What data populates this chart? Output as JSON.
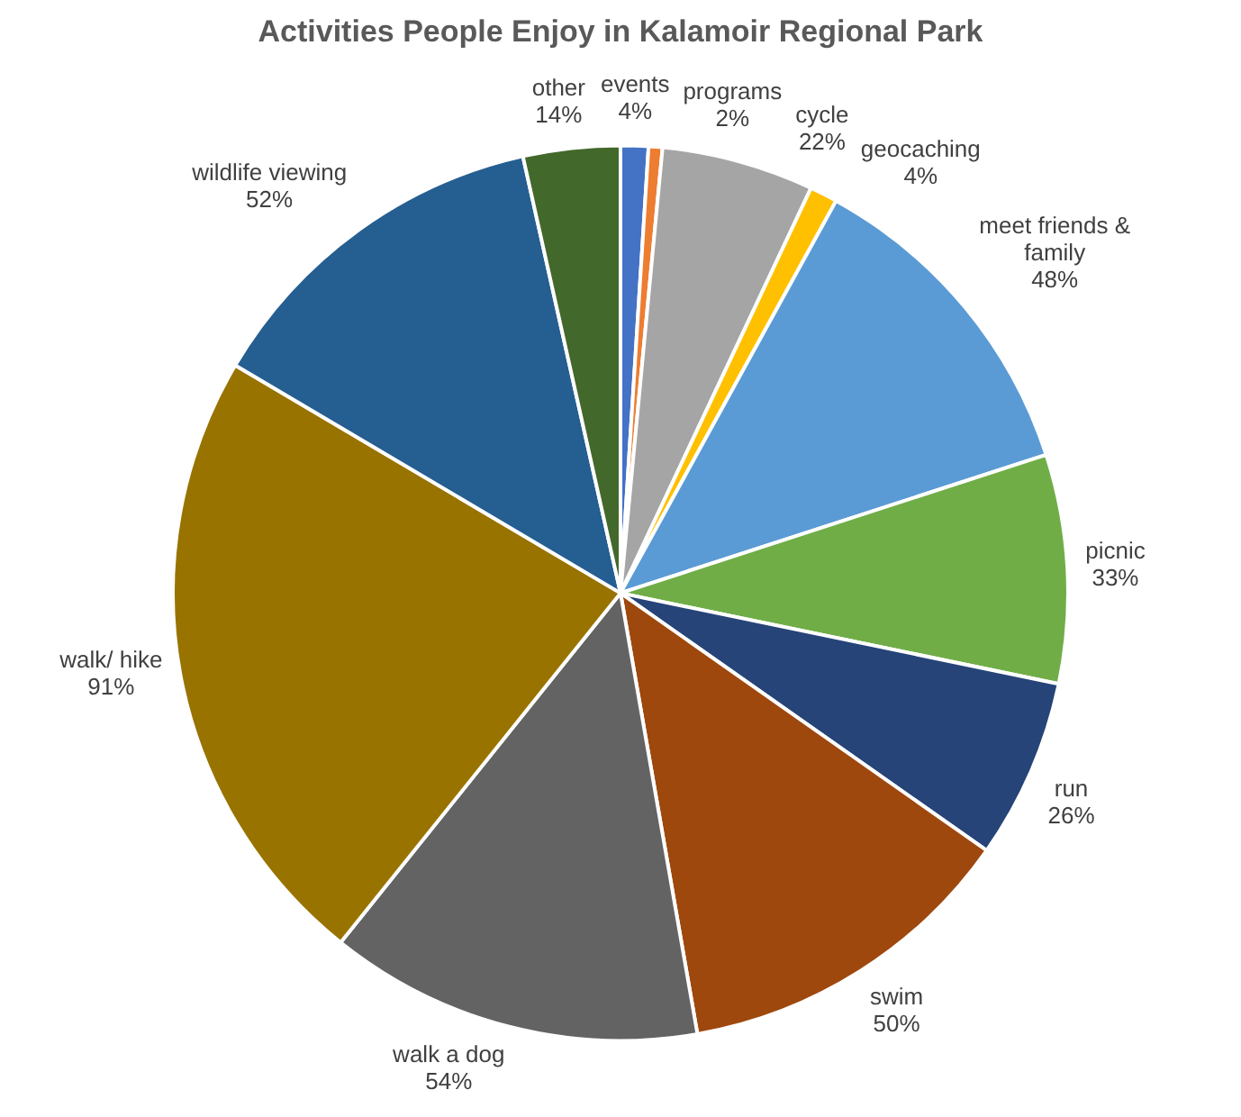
{
  "chart_data": {
    "type": "pie",
    "title": "Activities People Enjoy in Kalamoir Regional Park",
    "categories": [
      "events",
      "programs",
      "cycle",
      "geocaching",
      "meet friends & family",
      "picnic",
      "run",
      "swim",
      "walk a dog",
      "walk/ hike",
      "wildlife viewing",
      "other"
    ],
    "values": [
      4,
      2,
      22,
      4,
      48,
      33,
      26,
      50,
      54,
      91,
      52,
      14
    ],
    "value_labels": [
      "4%",
      "2%",
      "22%",
      "4%",
      "48%",
      "33%",
      "26%",
      "50%",
      "54%",
      "91%",
      "52%",
      "14%"
    ],
    "colors": [
      "#4472c4",
      "#ed7d31",
      "#a5a5a5",
      "#ffc000",
      "#5b9bd5",
      "#70ad47",
      "#264478",
      "#9e480e",
      "#636363",
      "#997300",
      "#255e91",
      "#43682b"
    ]
  }
}
